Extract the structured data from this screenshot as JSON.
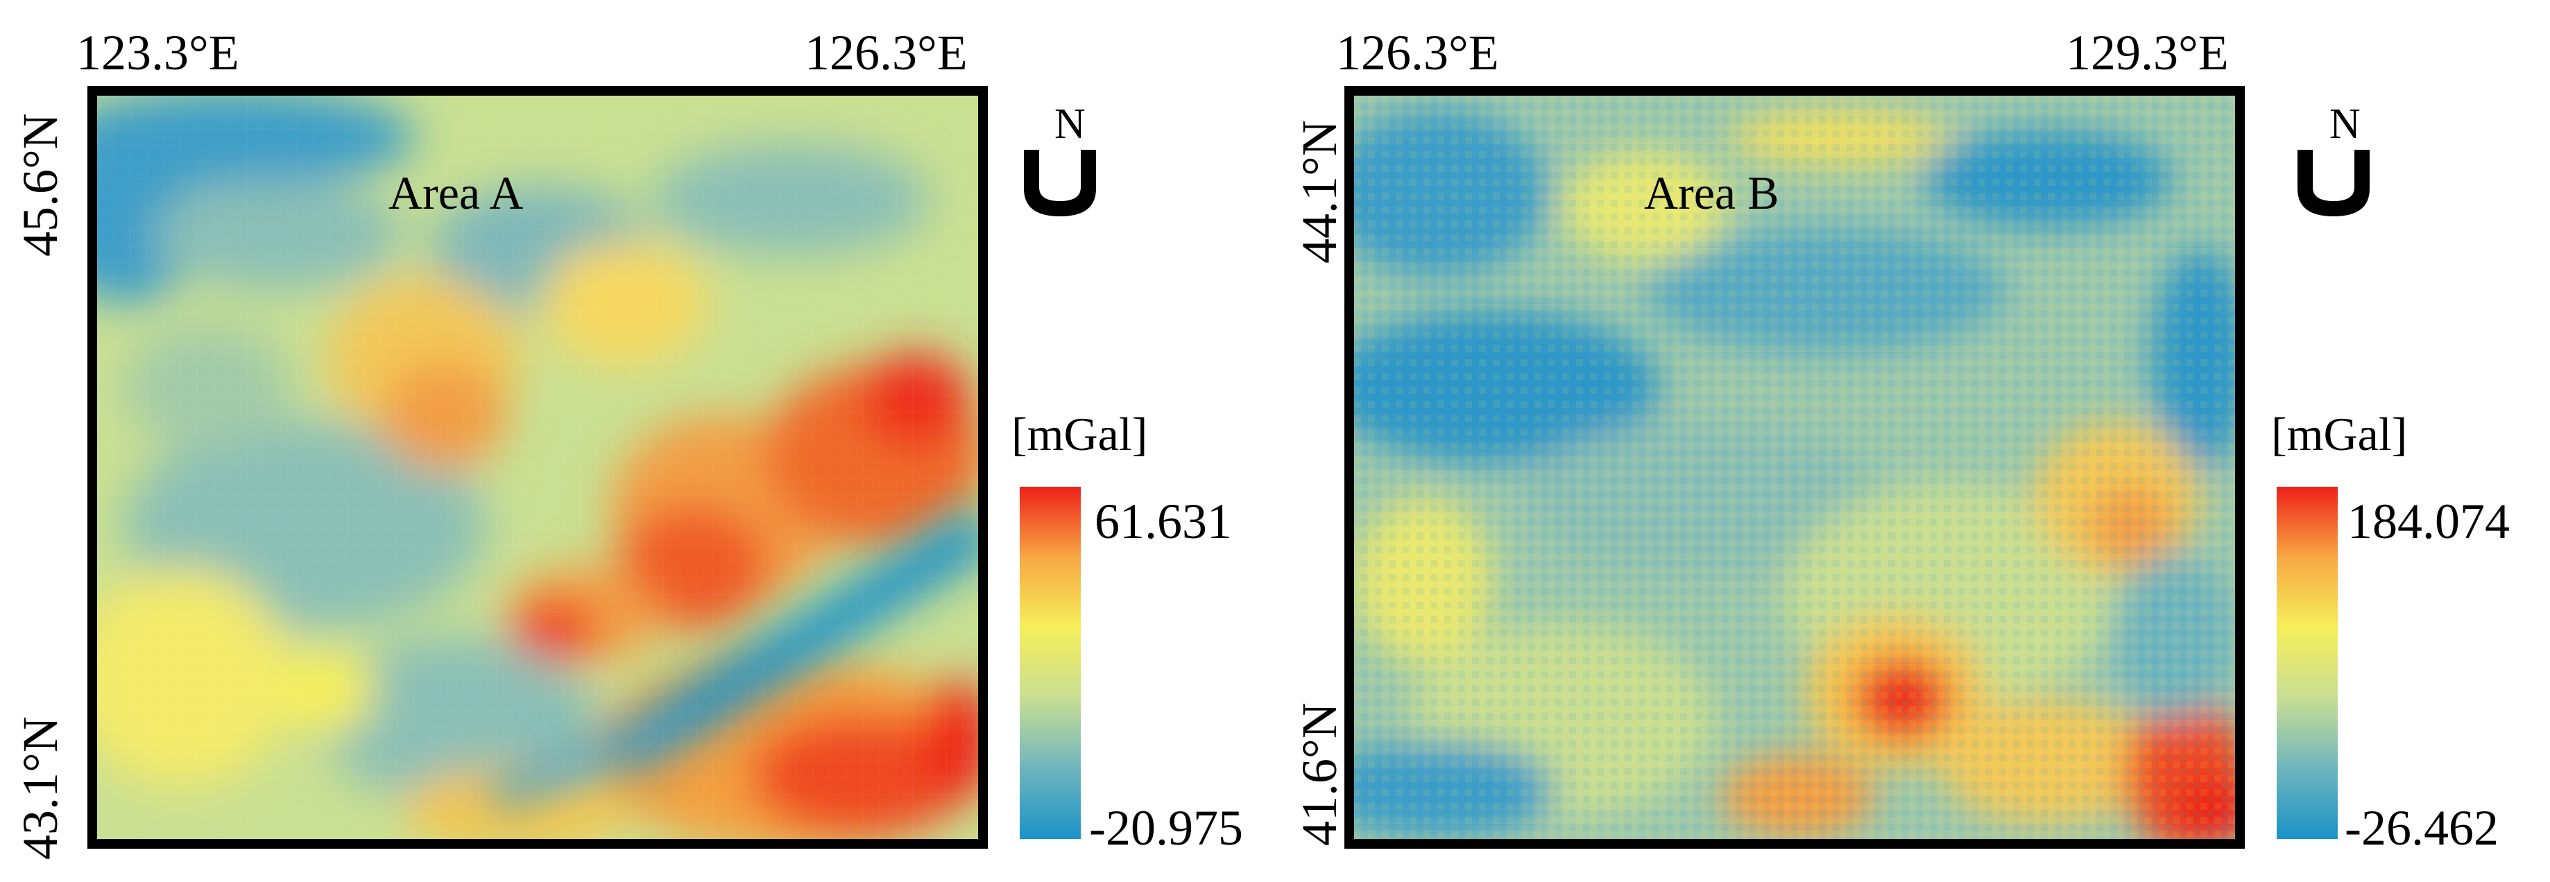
{
  "figure": {
    "panels": [
      {
        "id": "A",
        "title": "Area A",
        "lon_left": "123.3°E",
        "lon_right": "126.3°E",
        "lat_top": "45.6°N",
        "lat_bottom": "43.1°N",
        "north_label": "N",
        "unit": "[mGal]",
        "legend_max": "61.631",
        "legend_min": "-20.975",
        "value_range": [
          -20.975,
          61.631
        ]
      },
      {
        "id": "B",
        "title": "Area B",
        "lon_left": "126.3°E",
        "lon_right": "129.3°E",
        "lat_top": "44.1°N",
        "lat_bottom": "41.6°N",
        "north_label": "N",
        "unit": "[mGal]",
        "legend_max": "184.074",
        "legend_min": "-26.462",
        "value_range": [
          -26.462,
          184.074
        ]
      }
    ],
    "colormap": [
      "#1a93c8",
      "#6fb5bd",
      "#c8de93",
      "#f6ef5a",
      "#f7a744",
      "#ee2119"
    ],
    "frame_color": "#000000"
  }
}
